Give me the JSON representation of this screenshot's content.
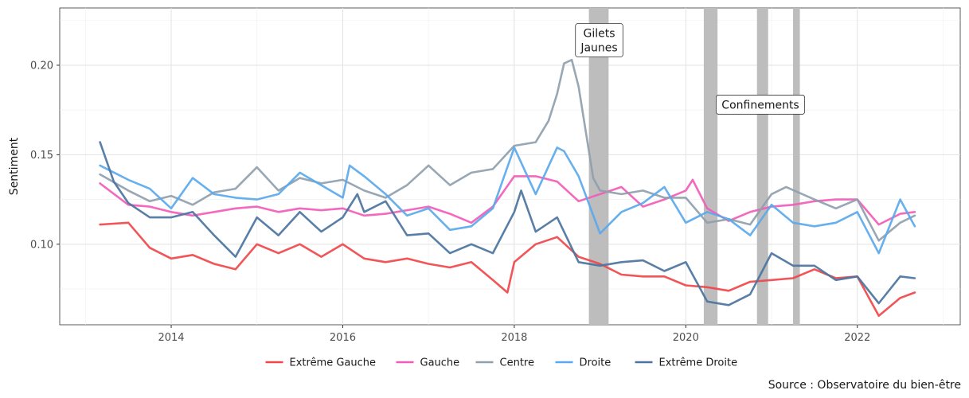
{
  "chart_data": {
    "type": "line",
    "xlabel": "",
    "ylabel": "Sentiment",
    "xlim": [
      2012.7,
      2023.2
    ],
    "ylim": [
      0.055,
      0.232
    ],
    "x_ticks": [
      2014,
      2016,
      2018,
      2020,
      2022
    ],
    "x_tick_labels": [
      "2014",
      "2016",
      "2018",
      "2020",
      "2022"
    ],
    "y_ticks": [
      0.1,
      0.15,
      0.2
    ],
    "y_tick_labels": [
      "0.10",
      "0.15",
      "0.20"
    ],
    "grid": true,
    "legend_position": "bottom",
    "source": "Source : Observatoire du bien-être",
    "shaded_periods": [
      {
        "start": 2018.87,
        "end": 2019.1
      },
      {
        "start": 2020.21,
        "end": 2020.37
      },
      {
        "start": 2020.83,
        "end": 2020.96
      },
      {
        "start": 2021.25,
        "end": 2021.33
      }
    ],
    "annotations": [
      {
        "lines": [
          "Gilets",
          "Jaunes"
        ],
        "x": 2018.99,
        "y": 0.214
      },
      {
        "lines": [
          "Confinements"
        ],
        "x": 2020.87,
        "y": 0.178
      }
    ],
    "series": [
      {
        "name": "Extrême Gauche",
        "color": "#f0474a",
        "x": [
          2013.17,
          2013.5,
          2013.75,
          2014.0,
          2014.25,
          2014.5,
          2014.75,
          2015.0,
          2015.25,
          2015.5,
          2015.75,
          2016.0,
          2016.25,
          2016.5,
          2016.75,
          2017.0,
          2017.25,
          2017.5,
          2017.75,
          2017.92,
          2018.0,
          2018.25,
          2018.5,
          2018.75,
          2019.0,
          2019.25,
          2019.5,
          2019.75,
          2020.0,
          2020.25,
          2020.5,
          2020.75,
          2021.0,
          2021.25,
          2021.5,
          2021.75,
          2022.0,
          2022.25,
          2022.5,
          2022.67
        ],
        "y": [
          0.111,
          0.112,
          0.098,
          0.092,
          0.094,
          0.089,
          0.086,
          0.1,
          0.095,
          0.1,
          0.093,
          0.1,
          0.092,
          0.09,
          0.092,
          0.089,
          0.087,
          0.09,
          0.08,
          0.073,
          0.09,
          0.1,
          0.104,
          0.093,
          0.089,
          0.083,
          0.082,
          0.082,
          0.077,
          0.076,
          0.074,
          0.079,
          0.08,
          0.081,
          0.086,
          0.081,
          0.082,
          0.06,
          0.07,
          0.073
        ]
      },
      {
        "name": "Gauche",
        "color": "#f25cb8",
        "x": [
          2013.17,
          2013.5,
          2013.75,
          2014.0,
          2014.25,
          2014.5,
          2014.75,
          2015.0,
          2015.25,
          2015.5,
          2015.75,
          2016.0,
          2016.25,
          2016.5,
          2016.75,
          2017.0,
          2017.25,
          2017.5,
          2017.75,
          2018.0,
          2018.25,
          2018.5,
          2018.75,
          2019.0,
          2019.25,
          2019.5,
          2019.75,
          2020.0,
          2020.08,
          2020.25,
          2020.5,
          2020.75,
          2021.0,
          2021.25,
          2021.5,
          2021.75,
          2022.0,
          2022.25,
          2022.5,
          2022.67
        ],
        "y": [
          0.134,
          0.122,
          0.121,
          0.118,
          0.116,
          0.118,
          0.12,
          0.121,
          0.118,
          0.12,
          0.119,
          0.12,
          0.116,
          0.117,
          0.119,
          0.121,
          0.117,
          0.112,
          0.121,
          0.138,
          0.138,
          0.135,
          0.124,
          0.128,
          0.132,
          0.121,
          0.125,
          0.13,
          0.136,
          0.12,
          0.113,
          0.118,
          0.121,
          0.122,
          0.124,
          0.125,
          0.125,
          0.111,
          0.117,
          0.118
        ]
      },
      {
        "name": "Centre",
        "color": "#8f9fac",
        "x": [
          2013.17,
          2013.5,
          2013.75,
          2014.0,
          2014.25,
          2014.5,
          2014.75,
          2015.0,
          2015.25,
          2015.5,
          2015.75,
          2016.0,
          2016.25,
          2016.5,
          2016.75,
          2017.0,
          2017.25,
          2017.5,
          2017.75,
          2018.0,
          2018.25,
          2018.4,
          2018.5,
          2018.58,
          2018.67,
          2018.75,
          2018.92,
          2019.0,
          2019.25,
          2019.5,
          2019.75,
          2020.0,
          2020.25,
          2020.5,
          2020.75,
          2021.0,
          2021.17,
          2021.5,
          2021.75,
          2022.0,
          2022.25,
          2022.5,
          2022.67
        ],
        "y": [
          0.139,
          0.13,
          0.124,
          0.127,
          0.122,
          0.129,
          0.131,
          0.143,
          0.13,
          0.137,
          0.134,
          0.136,
          0.13,
          0.126,
          0.133,
          0.144,
          0.133,
          0.14,
          0.142,
          0.155,
          0.157,
          0.169,
          0.184,
          0.201,
          0.203,
          0.188,
          0.137,
          0.13,
          0.128,
          0.13,
          0.126,
          0.126,
          0.112,
          0.114,
          0.111,
          0.128,
          0.132,
          0.125,
          0.12,
          0.125,
          0.102,
          0.112,
          0.116
        ]
      },
      {
        "name": "Droite",
        "color": "#5aa9ec",
        "x": [
          2013.17,
          2013.5,
          2013.75,
          2014.0,
          2014.25,
          2014.5,
          2014.75,
          2015.0,
          2015.25,
          2015.5,
          2015.75,
          2016.0,
          2016.08,
          2016.25,
          2016.5,
          2016.75,
          2017.0,
          2017.25,
          2017.5,
          2017.75,
          2018.0,
          2018.25,
          2018.5,
          2018.58,
          2018.75,
          2019.0,
          2019.25,
          2019.5,
          2019.75,
          2020.0,
          2020.25,
          2020.5,
          2020.75,
          2021.0,
          2021.25,
          2021.5,
          2021.75,
          2022.0,
          2022.25,
          2022.5,
          2022.67
        ],
        "y": [
          0.144,
          0.136,
          0.131,
          0.12,
          0.137,
          0.128,
          0.126,
          0.125,
          0.128,
          0.14,
          0.133,
          0.126,
          0.144,
          0.138,
          0.128,
          0.116,
          0.12,
          0.108,
          0.11,
          0.12,
          0.154,
          0.128,
          0.154,
          0.152,
          0.138,
          0.106,
          0.118,
          0.123,
          0.132,
          0.112,
          0.118,
          0.114,
          0.105,
          0.122,
          0.112,
          0.11,
          0.112,
          0.118,
          0.095,
          0.125,
          0.11
        ]
      },
      {
        "name": "Extrême Droite",
        "color": "#4b74a0",
        "x": [
          2013.17,
          2013.33,
          2013.5,
          2013.75,
          2014.0,
          2014.25,
          2014.5,
          2014.75,
          2015.0,
          2015.25,
          2015.5,
          2015.75,
          2016.0,
          2016.17,
          2016.25,
          2016.5,
          2016.75,
          2017.0,
          2017.25,
          2017.5,
          2017.75,
          2018.0,
          2018.08,
          2018.25,
          2018.5,
          2018.75,
          2019.0,
          2019.25,
          2019.5,
          2019.75,
          2020.0,
          2020.25,
          2020.5,
          2020.75,
          2021.0,
          2021.25,
          2021.5,
          2021.75,
          2022.0,
          2022.25,
          2022.5,
          2022.67
        ],
        "y": [
          0.157,
          0.135,
          0.123,
          0.115,
          0.115,
          0.118,
          0.105,
          0.093,
          0.115,
          0.105,
          0.118,
          0.107,
          0.115,
          0.128,
          0.118,
          0.124,
          0.105,
          0.106,
          0.095,
          0.1,
          0.095,
          0.118,
          0.13,
          0.107,
          0.115,
          0.09,
          0.088,
          0.09,
          0.091,
          0.085,
          0.09,
          0.068,
          0.066,
          0.072,
          0.095,
          0.088,
          0.088,
          0.08,
          0.082,
          0.067,
          0.082,
          0.081
        ]
      }
    ]
  }
}
